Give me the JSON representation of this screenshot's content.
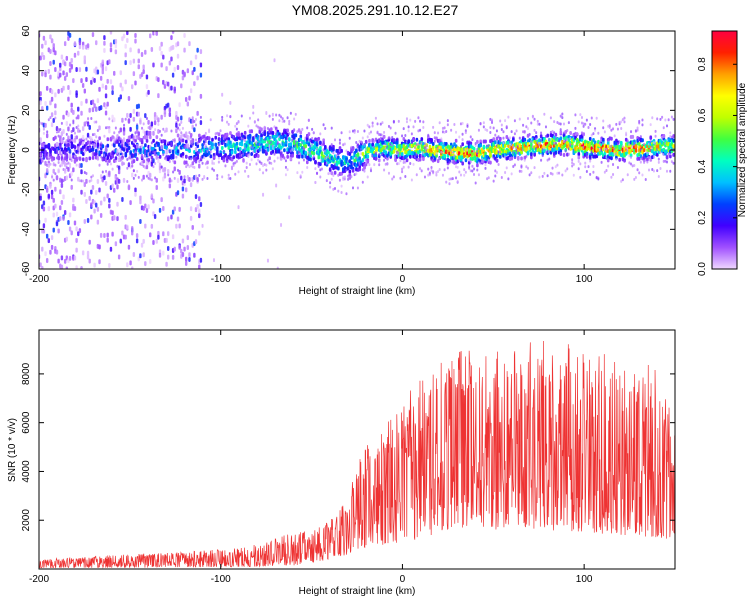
{
  "title": "YM08.2025.291.10.12.E27",
  "chart_data": [
    {
      "type": "heatmap",
      "xlabel": "Height of straight line (km)",
      "ylabel": "Frequency (Hz)",
      "xlim": [
        -200,
        150
      ],
      "ylim": [
        -60,
        60
      ],
      "xticks": [
        -200,
        -100,
        0,
        100
      ],
      "yticks": [
        -60,
        -40,
        -20,
        0,
        20,
        40,
        60
      ],
      "colorbar": {
        "label": "Normalized spectral amplitude",
        "range": [
          0.0,
          0.93
        ],
        "ticks": [
          0.0,
          0.2,
          0.4,
          0.6,
          0.8
        ],
        "colors": [
          "#f0d8ff",
          "#a050ff",
          "#4000ff",
          "#0040ff",
          "#00c0ff",
          "#00ffc0",
          "#40ff40",
          "#c0ff00",
          "#ffff00",
          "#ffa000",
          "#ff2000",
          "#ff0040"
        ]
      },
      "ridge": {
        "x": [
          -200,
          -175,
          -150,
          -125,
          -100,
          -80,
          -70,
          -60,
          -50,
          -40,
          -30,
          -20,
          -10,
          0,
          10,
          25,
          40,
          50,
          60,
          75,
          90,
          105,
          120,
          135,
          150
        ],
        "y": [
          1,
          0,
          0,
          0,
          1,
          3,
          4,
          3,
          0,
          -4,
          -7,
          -1,
          1,
          0,
          1,
          -1,
          -2,
          0,
          1,
          2,
          3,
          1,
          0,
          1,
          2
        ],
        "peak_amplitude": [
          0.2,
          0.25,
          0.3,
          0.35,
          0.4,
          0.5,
          0.5,
          0.5,
          0.55,
          0.5,
          0.4,
          0.6,
          0.65,
          0.7,
          0.75,
          0.85,
          0.9,
          0.85,
          0.75,
          0.85,
          0.8,
          0.9,
          0.85,
          0.8,
          0.7
        ]
      },
      "background_noise": {
        "x_range": [
          -200,
          -110
        ],
        "amplitude": 0.15
      }
    },
    {
      "type": "line",
      "xlabel": "Height of straight line (km)",
      "ylabel": "SNR (10 * v/v)",
      "xlim": [
        -200,
        150
      ],
      "ylim": [
        0,
        9800
      ],
      "xticks": [
        -200,
        -100,
        0,
        100
      ],
      "yticks": [
        2000,
        4000,
        6000,
        8000
      ],
      "color": "#ee3333",
      "envelope": {
        "x": [
          -200,
          -150,
          -100,
          -80,
          -60,
          -50,
          -40,
          -30,
          -25,
          -20,
          -10,
          0,
          10,
          20,
          30,
          40,
          50,
          60,
          80,
          100,
          120,
          140,
          150
        ],
        "lower": [
          50,
          50,
          80,
          100,
          150,
          250,
          400,
          600,
          800,
          900,
          1000,
          1100,
          1200,
          1500,
          1700,
          1700,
          1600,
          1700,
          1600,
          1500,
          1400,
          1300,
          1200
        ],
        "upper": [
          400,
          600,
          800,
          1000,
          1500,
          1600,
          2000,
          3000,
          4500,
          5000,
          6000,
          7000,
          7800,
          8400,
          9400,
          8800,
          9000,
          9200,
          9400,
          9200,
          8600,
          8400,
          6000
        ]
      }
    }
  ]
}
